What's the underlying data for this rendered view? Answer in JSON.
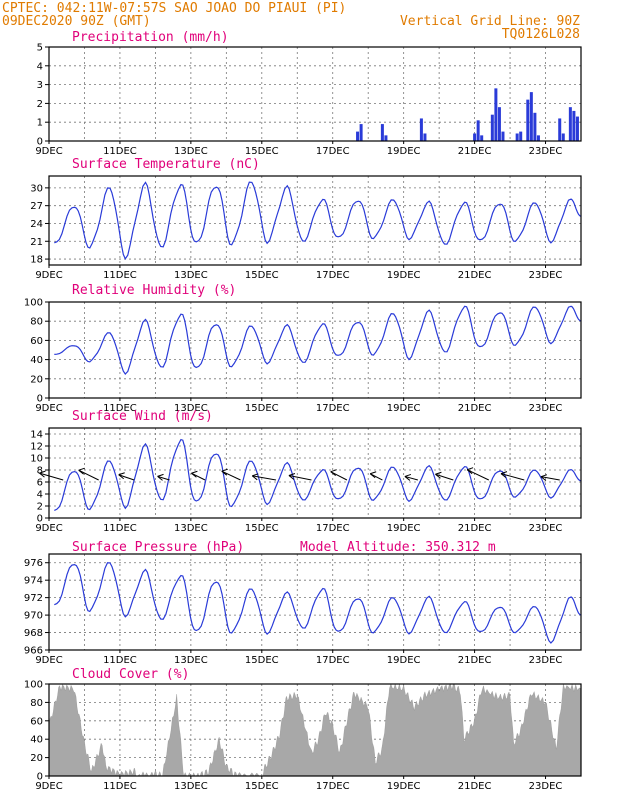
{
  "header": {
    "line1": "CPTEC:   042:11W-07:57S  SAO JOAO DO PIAUI (PI)",
    "line2_left": "09DEC2020 90Z (GMT)",
    "line2_right": "Vertical Grid Line: 90Z",
    "line3_right": "TQ0126L028"
  },
  "colors": {
    "title": "#e0007a",
    "header": "#e07b00",
    "line": "#2a3bd8",
    "bar": "#2a3bd8",
    "cloud": "#a8a8a8",
    "arrow": "#000000"
  },
  "x_labels": [
    "9DEC",
    "11DEC",
    "13DEC",
    "15DEC",
    "17DEC",
    "19DEC",
    "21DEC",
    "23DEC"
  ],
  "chart_data": [
    {
      "type": "bar",
      "title": "Precipitation (mm/h)",
      "ylim": [
        0,
        5
      ],
      "yticks": [
        "0",
        "1",
        "2",
        "3",
        "4",
        "5"
      ],
      "x": [
        "9DEC",
        "24DEC"
      ],
      "values": [
        [
          17.7,
          0.5
        ],
        [
          17.8,
          0.9
        ],
        [
          18.4,
          0.9
        ],
        [
          18.5,
          0.3
        ],
        [
          19.5,
          1.2
        ],
        [
          19.6,
          0.4
        ],
        [
          21.0,
          0.4
        ],
        [
          21.1,
          1.1
        ],
        [
          21.2,
          0.3
        ],
        [
          21.5,
          1.4
        ],
        [
          21.6,
          2.8
        ],
        [
          21.7,
          1.8
        ],
        [
          21.8,
          0.5
        ],
        [
          22.2,
          0.4
        ],
        [
          22.3,
          0.5
        ],
        [
          22.5,
          2.2
        ],
        [
          22.6,
          2.6
        ],
        [
          22.7,
          1.5
        ],
        [
          22.8,
          0.3
        ],
        [
          23.4,
          1.2
        ],
        [
          23.5,
          0.4
        ],
        [
          23.7,
          1.8
        ],
        [
          23.8,
          1.6
        ],
        [
          23.9,
          1.3
        ]
      ]
    },
    {
      "type": "line",
      "title": "Surface Temperature (nC)",
      "ylim": [
        17,
        32
      ],
      "yticks": [
        "18",
        "21",
        "24",
        "27",
        "30"
      ],
      "maxima": [
        27,
        30,
        30.5,
        30.5,
        30.5,
        31,
        30,
        28,
        28,
        28,
        27.5,
        27.5,
        27.5,
        27.5,
        28
      ],
      "minima": [
        20.5,
        20,
        18.5,
        20,
        20.5,
        20.5,
        21,
        21,
        21.5,
        21.5,
        21.5,
        20.5,
        21,
        21,
        21
      ]
    },
    {
      "type": "line",
      "title": "Relative Humidity (%)",
      "ylim": [
        0,
        100
      ],
      "yticks": [
        "0",
        "20",
        "40",
        "60",
        "80",
        "100"
      ],
      "maxima": [
        55,
        68,
        80,
        87,
        78,
        75,
        75,
        77,
        80,
        88,
        90,
        95,
        90,
        95,
        95
      ],
      "minima": [
        45,
        38,
        27,
        32,
        30,
        33,
        37,
        37,
        43,
        45,
        42,
        48,
        52,
        55,
        58
      ]
    },
    {
      "type": "line",
      "title": "Surface Wind (m/s)",
      "ylim": [
        0,
        15
      ],
      "yticks": [
        "0",
        "2",
        "4",
        "6",
        "8",
        "10",
        "12",
        "14"
      ],
      "maxima": [
        8,
        9.5,
        12,
        13,
        11,
        9.5,
        9,
        8,
        8.5,
        8.5,
        8.5,
        8.5,
        8,
        8,
        8
      ],
      "minima": [
        1,
        1.5,
        2,
        3,
        2.5,
        2,
        2.5,
        3,
        3,
        3,
        3,
        3,
        3,
        3.5,
        3.5
      ]
    },
    {
      "type": "line",
      "title": "Surface Pressure (hPa)",
      "annotation": "Model Altitude: 350.312 m",
      "ylim": [
        966,
        977
      ],
      "yticks": [
        "966",
        "968",
        "970",
        "972",
        "974",
        "976"
      ],
      "maxima": [
        976,
        976,
        975,
        974.5,
        974,
        973,
        972.5,
        973,
        972,
        972,
        972,
        971.5,
        971,
        971,
        972
      ],
      "minima": [
        971,
        970.5,
        970,
        969.5,
        968,
        968,
        968,
        968.5,
        968,
        968,
        968,
        968,
        968,
        968,
        967
      ]
    },
    {
      "type": "area",
      "title": "Cloud Cover (%)",
      "ylim": [
        0,
        100
      ],
      "yticks": [
        "0",
        "20",
        "40",
        "60",
        "80",
        "100"
      ],
      "values": [
        [
          9.0,
          55
        ],
        [
          9.3,
          97
        ],
        [
          9.7,
          95
        ],
        [
          10.0,
          35
        ],
        [
          10.2,
          5
        ],
        [
          10.5,
          35
        ],
        [
          10.6,
          10
        ],
        [
          11.0,
          2
        ],
        [
          11.4,
          5
        ],
        [
          11.5,
          0
        ],
        [
          12.0,
          2
        ],
        [
          12.2,
          0
        ],
        [
          12.6,
          85
        ],
        [
          12.8,
          0
        ],
        [
          13.2,
          0
        ],
        [
          13.5,
          5
        ],
        [
          13.8,
          40
        ],
        [
          14.0,
          10
        ],
        [
          14.3,
          0
        ],
        [
          15.0,
          0
        ],
        [
          15.1,
          10
        ],
        [
          15.3,
          25
        ],
        [
          15.5,
          45
        ],
        [
          15.7,
          85
        ],
        [
          16.0,
          88
        ],
        [
          16.4,
          25
        ],
        [
          16.6,
          40
        ],
        [
          16.8,
          70
        ],
        [
          17.0,
          55
        ],
        [
          17.2,
          25
        ],
        [
          17.4,
          60
        ],
        [
          17.6,
          90
        ],
        [
          18.0,
          75
        ],
        [
          18.2,
          15
        ],
        [
          18.4,
          30
        ],
        [
          18.6,
          98
        ],
        [
          19.0,
          95
        ],
        [
          19.3,
          75
        ],
        [
          19.6,
          88
        ],
        [
          20.0,
          95
        ],
        [
          20.4,
          98
        ],
        [
          20.6,
          92
        ],
        [
          20.7,
          40
        ],
        [
          21.0,
          60
        ],
        [
          21.2,
          95
        ],
        [
          21.7,
          85
        ],
        [
          22.0,
          88
        ],
        [
          22.1,
          35
        ],
        [
          22.3,
          50
        ],
        [
          22.6,
          90
        ],
        [
          23.0,
          80
        ],
        [
          23.3,
          30
        ],
        [
          23.5,
          97
        ],
        [
          24.0,
          95
        ]
      ]
    }
  ]
}
